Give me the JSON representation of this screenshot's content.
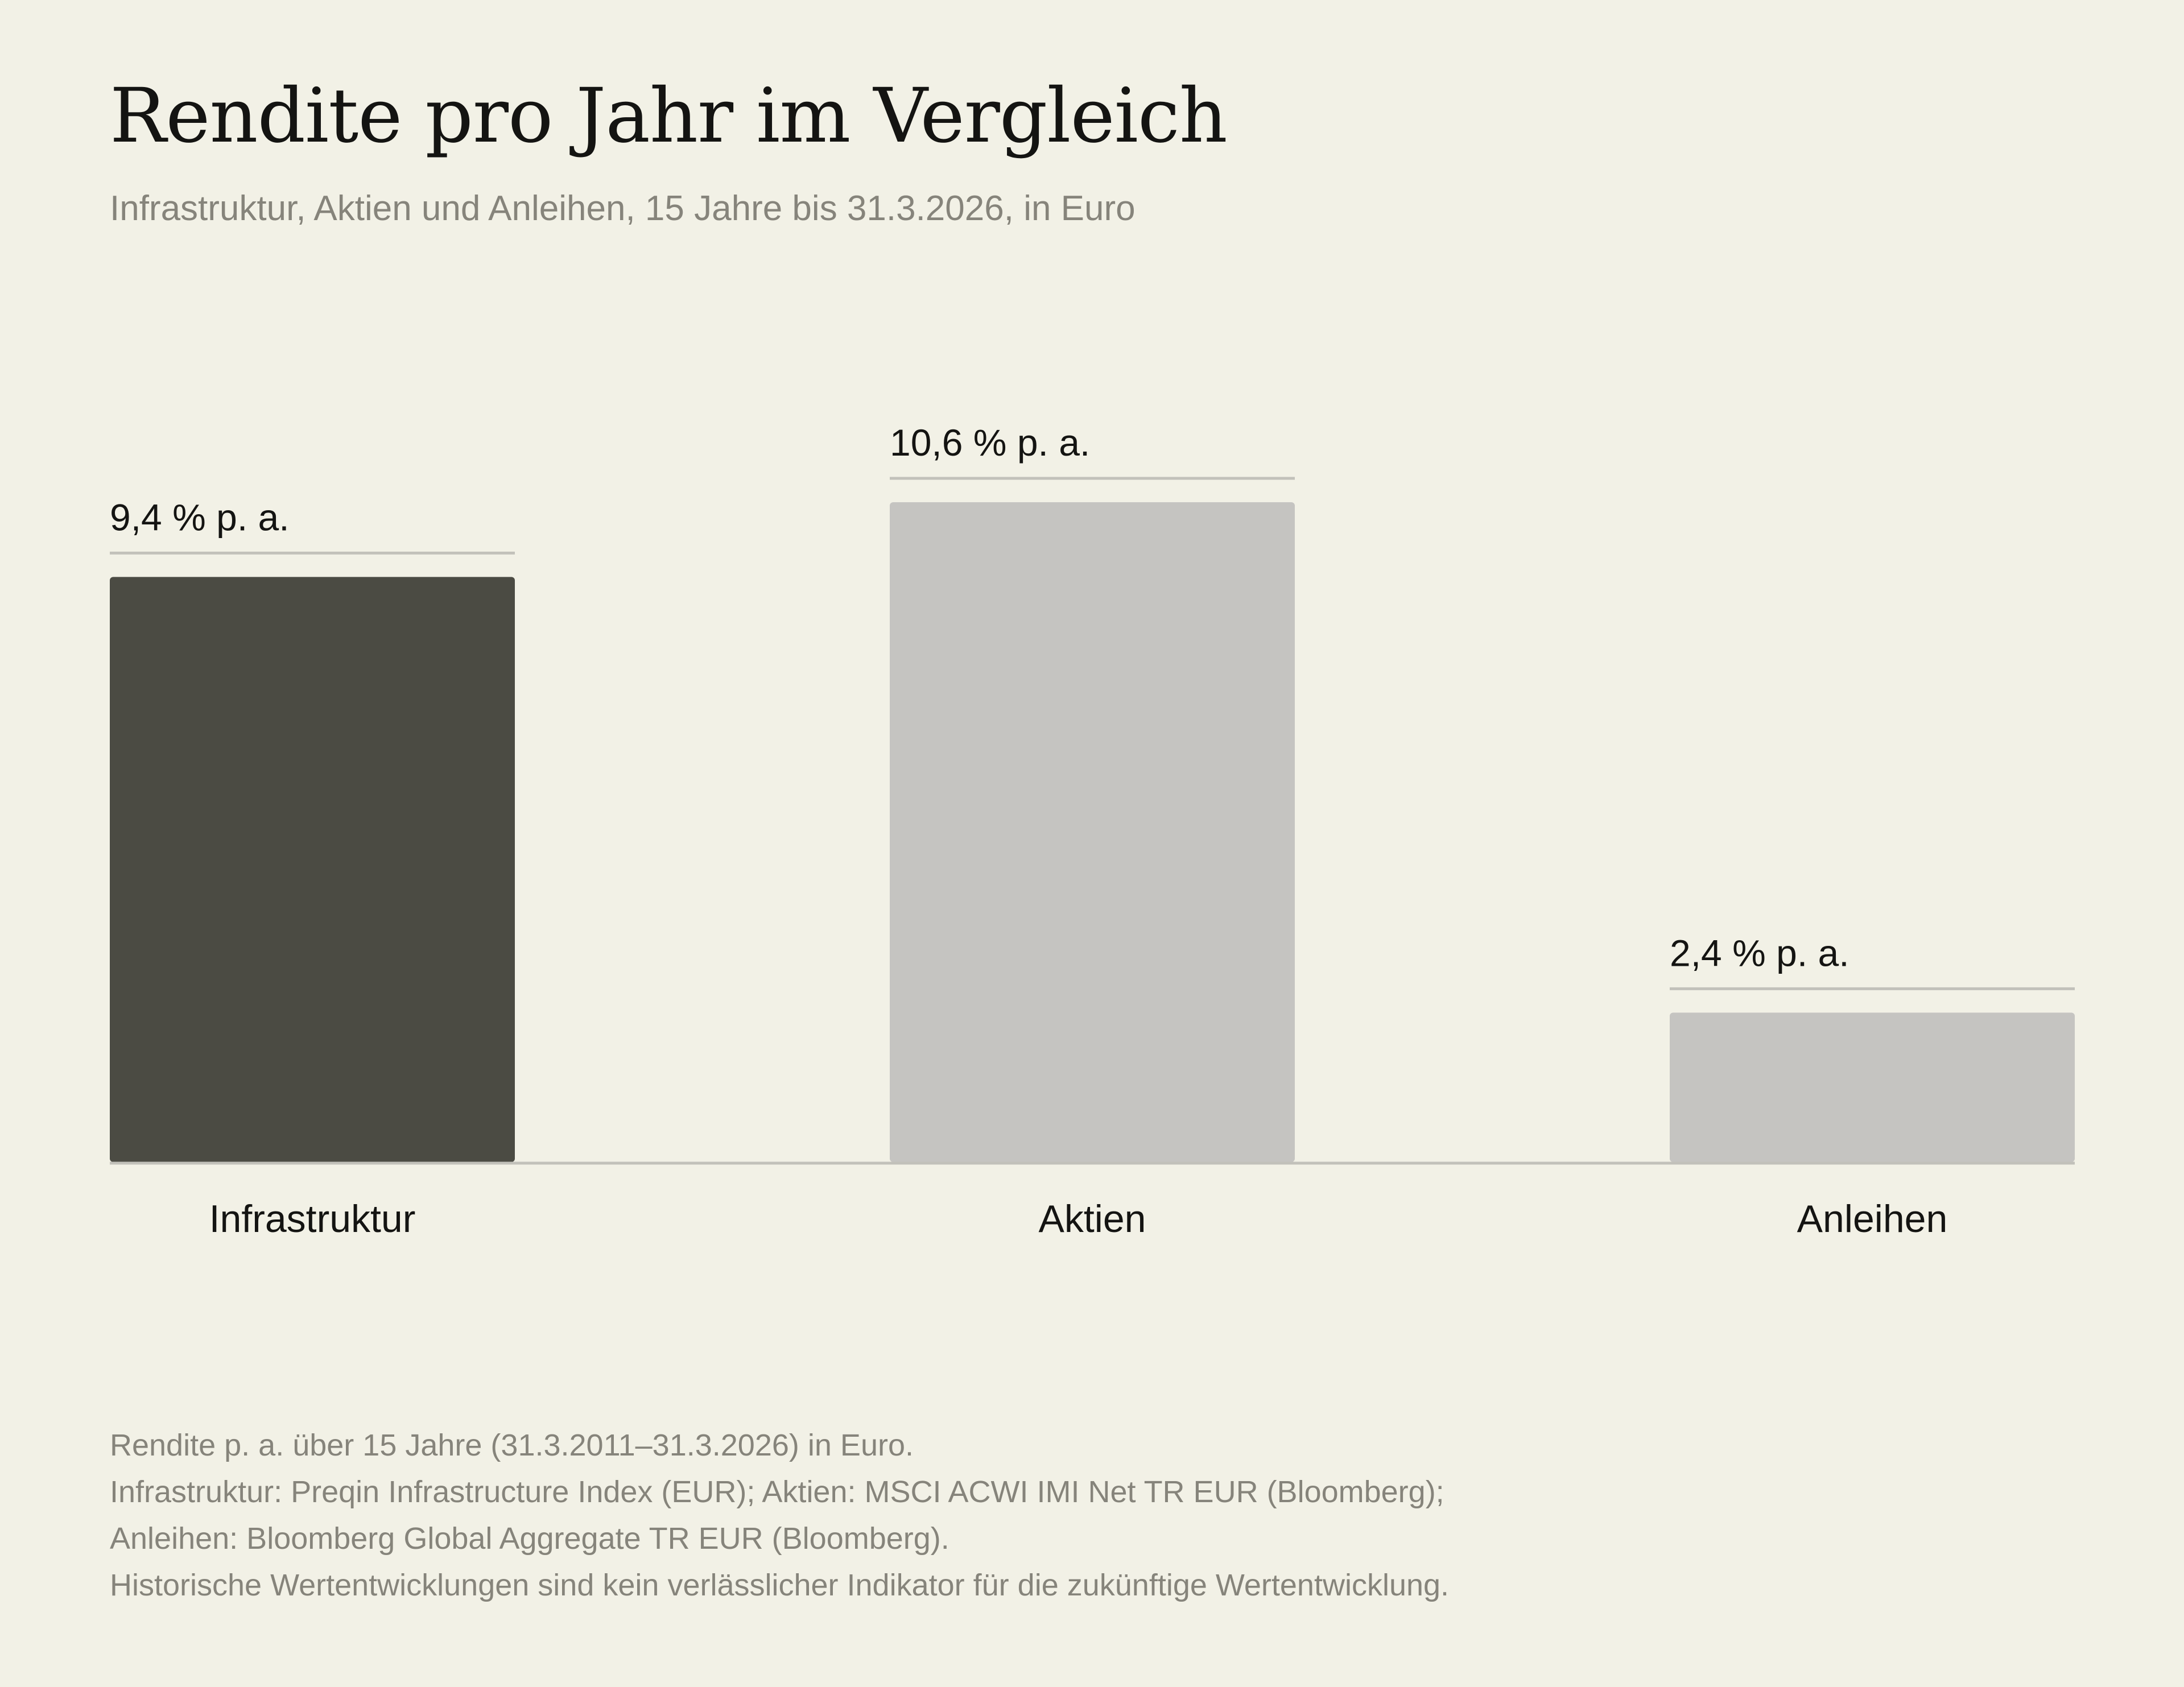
{
  "title": "Rendite pro Jahr im Vergleich",
  "subtitle": "Infrastruktur, Aktien und Anleihen, 15 Jahre bis 31.3.2026, in Euro",
  "footnotes": [
    "Rendite p. a. über 15 Jahre (31.3.2011–31.3.2026) in Euro.",
    "Infrastruktur: Preqin Infrastructure Index (EUR); Aktien: MSCI ACWI IMI Net TR EUR (Bloomberg);",
    "Anleihen: Bloomberg Global Aggregate TR EUR (Bloomberg).",
    "Historische Wertentwicklungen sind kein verlässlicher Indikator für die zukünftige Wertentwicklung."
  ],
  "colors": {
    "background": "#f2f1e6",
    "highlight_bar": "#4b4b43",
    "other_bar": "#c5c4c1",
    "rule": "#c2c1ba",
    "text": "#141412",
    "muted_text": "#86847b"
  },
  "chart_data": {
    "type": "bar",
    "categories": [
      "Infrastruktur",
      "Aktien",
      "Anleihen"
    ],
    "values": [
      9.4,
      10.6,
      2.4
    ],
    "value_labels": [
      "9,4 % p. a.",
      "10,6 % p. a.",
      "2,4 % p. a."
    ],
    "highlighted": "Infrastruktur",
    "unit": "% p. a.",
    "ylim": [
      0,
      10.6
    ],
    "grid": false,
    "legend": "none"
  }
}
